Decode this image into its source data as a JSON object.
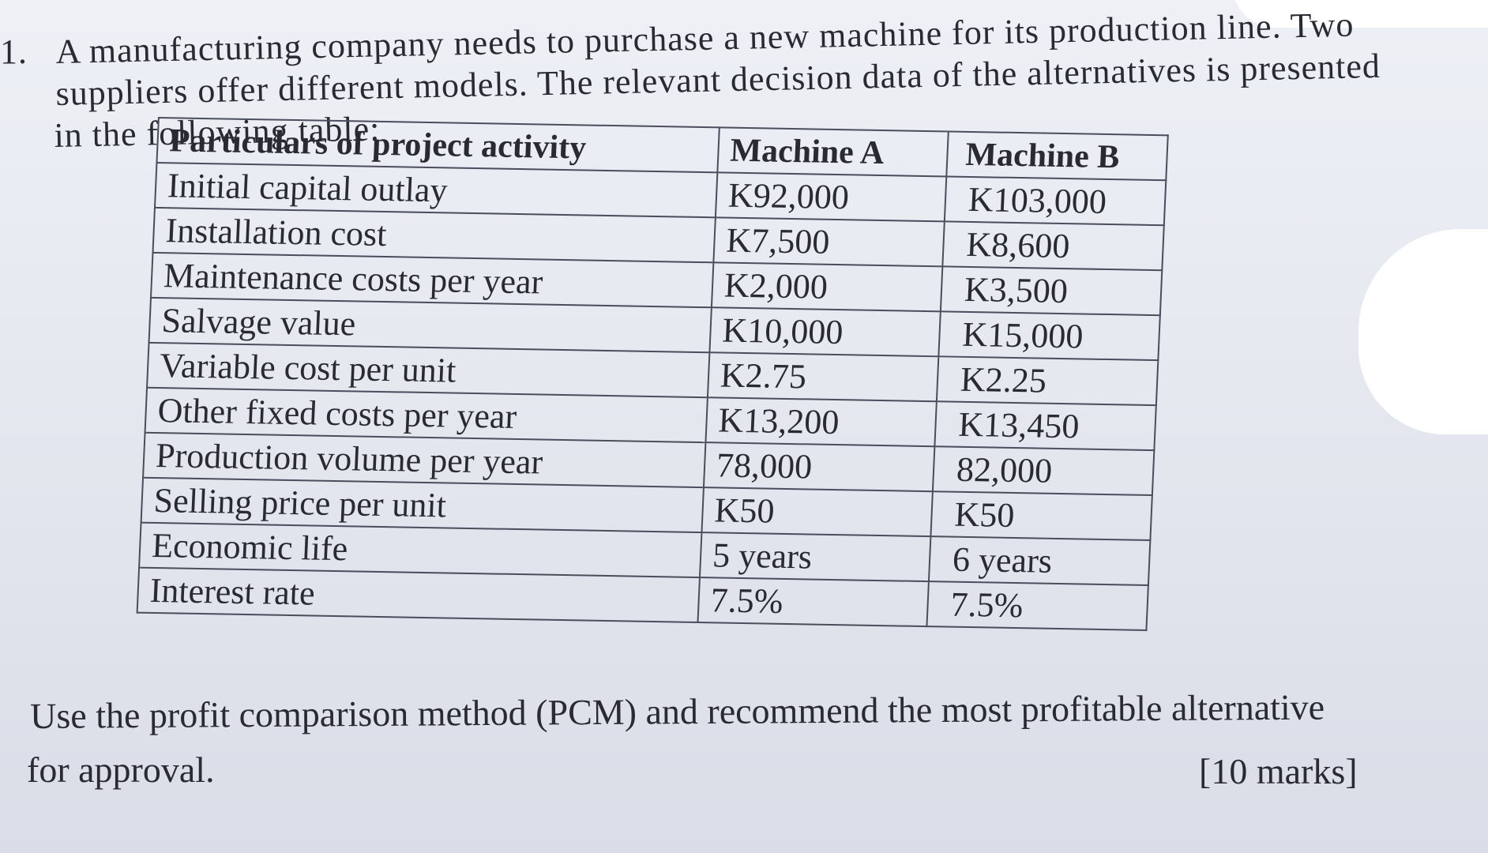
{
  "question": {
    "number": "1.",
    "line1": "A manufacturing company needs to purchase a new machine for its production line. Two",
    "line2": "suppliers offer different models. The relevant decision data of the alternatives is presented",
    "line3": "in the following table:"
  },
  "table": {
    "headers": [
      "Particulars of project activity",
      "Machine A",
      "Machine B"
    ],
    "rows": [
      {
        "label": "Initial capital outlay",
        "a": "K92,000",
        "b": "K103,000"
      },
      {
        "label": "Installation cost",
        "a": "K7,500",
        "b": "K8,600"
      },
      {
        "label": "Maintenance costs per year",
        "a": "K2,000",
        "b": "K3,500"
      },
      {
        "label": "Salvage value",
        "a": "K10,000",
        "b": "K15,000"
      },
      {
        "label": "Variable cost per unit",
        "a": "K2.75",
        "b": "K2.25"
      },
      {
        "label": "Other fixed costs per year",
        "a": "K13,200",
        "b": "K13,450"
      },
      {
        "label": "Production volume per year",
        "a": "78,000",
        "b": "82,000"
      },
      {
        "label": "Selling price per unit",
        "a": "K50",
        "b": "K50"
      },
      {
        "label": "Economic life",
        "a": "5 years",
        "b": "6 years"
      },
      {
        "label": "Interest rate",
        "a": "7.5%",
        "b": "7.5%"
      }
    ]
  },
  "instruction": {
    "line1": "Use the profit comparison method (PCM) and recommend the most profitable alternative",
    "line2": "for approval.",
    "marks": "[10 marks]"
  }
}
